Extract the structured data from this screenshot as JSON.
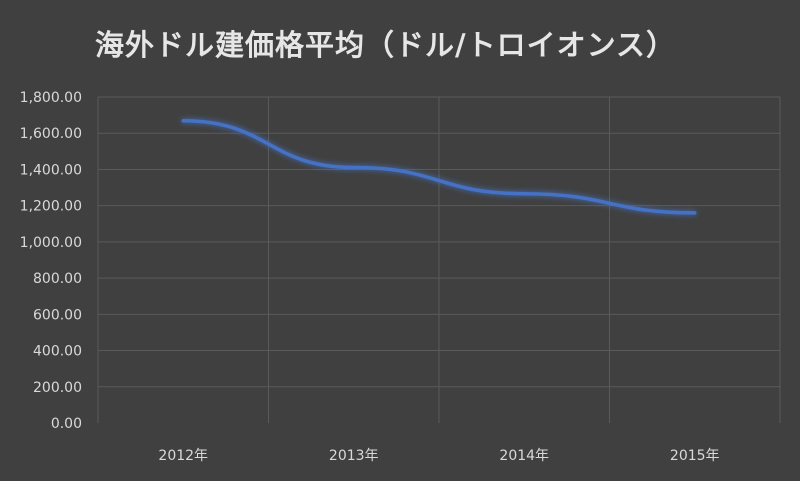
{
  "chart_data": {
    "type": "line",
    "title": "海外ドル建価格平均（ドル/トロイオンス）",
    "categories": [
      "2012年",
      "2013年",
      "2014年",
      "2015年"
    ],
    "series": [
      {
        "values": [
          1669,
          1411,
          1266,
          1160
        ]
      }
    ],
    "ylim": [
      0,
      1800
    ],
    "ytick_labels": [
      "0.00",
      "200.00",
      "400.00",
      "600.00",
      "800.00",
      "1,000.00",
      "1,200.00",
      "1,400.00",
      "1,600.00",
      "1,800.00"
    ],
    "xlabel": "",
    "ylabel": "",
    "grid": true,
    "legend": "none",
    "colors": {
      "background": "#404040",
      "line": "#4472c4",
      "grid": "#5a5a5a",
      "text": "#d9d9d9"
    }
  }
}
